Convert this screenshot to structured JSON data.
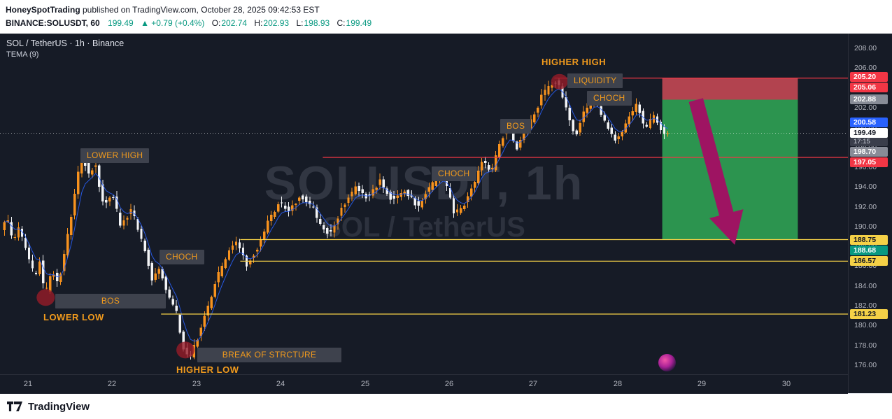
{
  "header": {
    "publisher": "HoneySpotTrading",
    "published_text": " published on TradingView.com, October 28, 2025 09:42:53 EST",
    "symbol_line": {
      "symbol": "BINANCE:SOLUSDT, 60",
      "last": "199.49",
      "change": "▲ +0.79 (+0.4%)",
      "ohlc": [
        {
          "label": "O:",
          "value": "202.74"
        },
        {
          "label": "H:",
          "value": "202.93"
        },
        {
          "label": "L:",
          "value": "198.93"
        },
        {
          "label": "C:",
          "value": "199.49"
        }
      ]
    }
  },
  "chart": {
    "legend_title": "SOL / TetherUS · 1h · Binance",
    "legend_indicator": "TEMA (9)",
    "watermark_line1": "SOLUSDT, 1h",
    "watermark_line2": "SOL / TetherUS"
  },
  "footer": {
    "brand": "TradingView"
  },
  "colors": {
    "background": "#161b26",
    "axis_text": "#b2b5be",
    "candle_up": "#f7921e",
    "candle_down": "#f2f3f5",
    "tema_line": "#2962ff",
    "annotation_text": "#f29b1d",
    "annotation_bg": "#3e424d",
    "watermark": "rgba(170,178,192,0.18)",
    "header_value": "#089981",
    "pivot_circle": "rgba(150,28,40,0.8)",
    "arrow": "#9e1462",
    "last_price_line": "rgba(255,255,255,0.55)"
  },
  "chart_data": {
    "type": "candlestick",
    "symbol": "BINANCE:SOLUSDT",
    "timeframe": "1h",
    "ylim": [
      176,
      208
    ],
    "price_ticks": [
      208,
      206,
      204,
      202,
      200,
      198,
      196,
      194,
      192,
      190,
      188,
      186,
      184,
      182,
      180,
      178,
      176
    ],
    "time_ticks": [
      {
        "label": "21",
        "t": 21
      },
      {
        "label": "22",
        "t": 22
      },
      {
        "label": "23",
        "t": 23
      },
      {
        "label": "24",
        "t": 24
      },
      {
        "label": "25",
        "t": 25
      },
      {
        "label": "26",
        "t": 26
      },
      {
        "label": "27",
        "t": 27
      },
      {
        "label": "28",
        "t": 28
      },
      {
        "label": "29",
        "t": 29
      },
      {
        "label": "30",
        "t": 30
      }
    ],
    "t_start": 20.7,
    "t_end": 28.58,
    "bars_per_day": 24,
    "last_close": 199.49,
    "wick_min": 176.3,
    "wick_max": 205.2,
    "price_path": [
      [
        20.7,
        189.5
      ],
      [
        20.76,
        191.3
      ],
      [
        20.84,
        188.5
      ],
      [
        20.92,
        190.0
      ],
      [
        21.02,
        187.0
      ],
      [
        21.1,
        185.0
      ],
      [
        21.16,
        186.5
      ],
      [
        21.22,
        182.9
      ],
      [
        21.3,
        185.6
      ],
      [
        21.38,
        184.3
      ],
      [
        21.48,
        188.5
      ],
      [
        21.58,
        193.5
      ],
      [
        21.66,
        197.6
      ],
      [
        21.74,
        195.3
      ],
      [
        21.82,
        196.3
      ],
      [
        21.92,
        192.0
      ],
      [
        22.02,
        193.6
      ],
      [
        22.12,
        190.0
      ],
      [
        22.25,
        191.8
      ],
      [
        22.4,
        188.0
      ],
      [
        22.5,
        184.5
      ],
      [
        22.58,
        186.0
      ],
      [
        22.68,
        183.3
      ],
      [
        22.78,
        181.5
      ],
      [
        22.88,
        177.3
      ],
      [
        22.94,
        176.8
      ],
      [
        23.04,
        179.0
      ],
      [
        23.14,
        181.5
      ],
      [
        23.26,
        184.8
      ],
      [
        23.4,
        187.6
      ],
      [
        23.5,
        188.5
      ],
      [
        23.62,
        186.2
      ],
      [
        23.75,
        188.0
      ],
      [
        23.88,
        190.8
      ],
      [
        24.0,
        192.5
      ],
      [
        24.12,
        191.5
      ],
      [
        24.25,
        193.3
      ],
      [
        24.4,
        192.0
      ],
      [
        24.5,
        190.0
      ],
      [
        24.62,
        189.3
      ],
      [
        24.75,
        192.0
      ],
      [
        24.9,
        194.0
      ],
      [
        25.05,
        193.0
      ],
      [
        25.2,
        194.6
      ],
      [
        25.35,
        192.6
      ],
      [
        25.5,
        193.8
      ],
      [
        25.65,
        192.0
      ],
      [
        25.8,
        194.2
      ],
      [
        25.95,
        195.5
      ],
      [
        26.08,
        191.3
      ],
      [
        26.2,
        192.3
      ],
      [
        26.32,
        194.5
      ],
      [
        26.42,
        196.8
      ],
      [
        26.52,
        195.5
      ],
      [
        26.62,
        198.5
      ],
      [
        26.72,
        200.3
      ],
      [
        26.82,
        198.0
      ],
      [
        26.92,
        199.8
      ],
      [
        27.02,
        201.2
      ],
      [
        27.12,
        203.2
      ],
      [
        27.22,
        204.3
      ],
      [
        27.31,
        204.9
      ],
      [
        27.42,
        201.5
      ],
      [
        27.52,
        199.3
      ],
      [
        27.62,
        201.5
      ],
      [
        27.75,
        203.0
      ],
      [
        27.85,
        201.0
      ],
      [
        28.0,
        198.6
      ],
      [
        28.12,
        200.5
      ],
      [
        28.25,
        202.4
      ],
      [
        28.35,
        200.0
      ],
      [
        28.45,
        201.3
      ],
      [
        28.56,
        199.5
      ]
    ],
    "levels": [
      {
        "name": "stop-line",
        "price": 205.06,
        "color": "#f23645",
        "t1": 27.25,
        "t2": 31
      },
      {
        "name": "mid-line",
        "price": 197.05,
        "color": "#f23645",
        "t1": 24.5,
        "t2": 31
      },
      {
        "name": "target-line",
        "price": 188.75,
        "color": "#f5d147",
        "t1": 23.52,
        "t2": 31
      },
      {
        "name": "support-line-1",
        "price": 186.57,
        "color": "#f5d147",
        "t1": 23.52,
        "t2": 31
      },
      {
        "name": "support-line-2",
        "price": 181.23,
        "color": "#f5d147",
        "t1": 22.58,
        "t2": 31
      }
    ],
    "zones": [
      {
        "name": "stop-zone",
        "t1": 28.53,
        "t2": 30.14,
        "top": 205.06,
        "bottom": 202.88,
        "color": "rgba(192,70,82,0.92)"
      },
      {
        "name": "profit-zone",
        "t1": 28.53,
        "t2": 30.14,
        "top": 202.88,
        "bottom": 188.75,
        "color": "rgba(47,158,83,0.92)"
      }
    ],
    "price_tags": [
      {
        "text": "205.20",
        "price": 205.2,
        "bg": "#f23645",
        "fg": "#ffffff"
      },
      {
        "text": "205.06",
        "price": 205.06,
        "bg": "#f23645",
        "fg": "#ffffff"
      },
      {
        "text": "202.88",
        "price": 202.88,
        "bg": "#888c97",
        "fg": "#ffffff"
      },
      {
        "text": "200.58",
        "price": 200.58,
        "bg": "#2962ff",
        "fg": "#ffffff"
      },
      {
        "text": "199.49",
        "price": 199.49,
        "bg": "#ffffff",
        "fg": "#131722",
        "countdown": "17:15"
      },
      {
        "text": "198.70",
        "price": 198.7,
        "bg": "#888c97",
        "fg": "#ffffff"
      },
      {
        "text": "197.05",
        "price": 197.05,
        "bg": "#f23645",
        "fg": "#ffffff"
      },
      {
        "text": "188.75",
        "price": 188.75,
        "bg": "#f5d147",
        "fg": "#131722"
      },
      {
        "text": "188.68",
        "price": 188.68,
        "bg": "#089981",
        "fg": "#ffffff"
      },
      {
        "text": "186.57",
        "price": 186.57,
        "bg": "#f5d147",
        "fg": "#131722"
      },
      {
        "text": "181.23",
        "price": 181.23,
        "bg": "#f5d147",
        "fg": "#131722"
      }
    ],
    "annotations": [
      {
        "id": "label-lower-high",
        "text": "LOWER HIGH",
        "style": "boxed",
        "t": 21.62,
        "price": 197.25
      },
      {
        "id": "label-bos-1",
        "text": "BOS",
        "style": "boxed",
        "t": 21.32,
        "price": 182.6,
        "w": 140
      },
      {
        "id": "label-lower-low",
        "text": "LOWER LOW",
        "style": "plain",
        "t": 21.18,
        "price": 180.7
      },
      {
        "id": "label-choch-1",
        "text": "CHOCH",
        "style": "boxed",
        "t": 22.56,
        "price": 187.05
      },
      {
        "id": "label-break-of-structure",
        "text": "BREAK OF STRCTURE",
        "style": "boxed",
        "t": 23.01,
        "price": 177.15,
        "w": 188
      },
      {
        "id": "label-higher-low",
        "text": "HIGHER LOW",
        "style": "plain",
        "t": 22.76,
        "price": 175.45
      },
      {
        "id": "label-choch-2",
        "text": "CHOCH",
        "style": "boxed",
        "t": 25.79,
        "price": 195.4
      },
      {
        "id": "label-bos-2",
        "text": "BOS",
        "style": "boxed",
        "t": 26.61,
        "price": 200.2
      },
      {
        "id": "label-higher-high",
        "text": "HIGHER HIGH",
        "style": "plain",
        "t": 27.1,
        "price": 206.5
      },
      {
        "id": "label-liquidity",
        "text": "LIQUIDITY",
        "style": "boxed",
        "t": 27.4,
        "price": 204.8
      },
      {
        "id": "label-choch-3",
        "text": "CHOCH",
        "style": "boxed",
        "t": 27.64,
        "price": 203.05
      }
    ],
    "pivot_circles": [
      {
        "t": 21.21,
        "price": 182.9,
        "r": 13
      },
      {
        "t": 22.87,
        "price": 177.6,
        "r": 13
      },
      {
        "t": 27.31,
        "price": 204.7,
        "r": 12
      }
    ],
    "arrow": {
      "from": {
        "t": 28.93,
        "price": 202.84
      },
      "to": {
        "t": 29.39,
        "price": 188.22
      }
    }
  }
}
